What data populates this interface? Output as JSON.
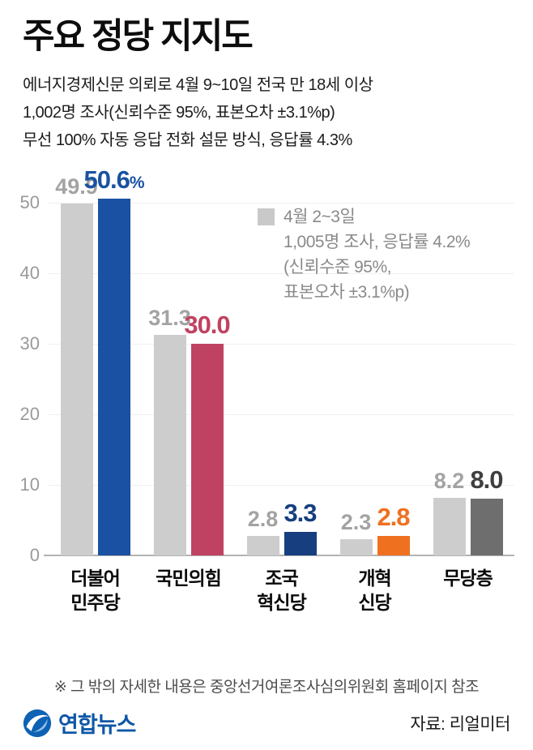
{
  "title": "주요 정당 지지도",
  "subtitle_lines": [
    "에너지경제신문 의뢰로 4월 9~10일 전국 만 18세 이상",
    "1,002명 조사(신뢰수준 95%, 표본오차 ±3.1%p)",
    "무선 100% 자동 응답 전화 설문 방식, 응답률 4.3%"
  ],
  "legend": {
    "swatch_color": "#c9c9c9",
    "lines": [
      "4월 2~3일",
      "1,005명 조사, 응답률 4.2%",
      "(신뢰수준 95%,",
      " 표본오차 ±3.1%p)"
    ]
  },
  "chart_data": {
    "type": "bar",
    "title": "주요 정당 지지도",
    "categories": [
      "더불어\n민주당",
      "국민의힘",
      "조국\n혁신당",
      "개혁\n신당",
      "무당층"
    ],
    "series": [
      {
        "name": "4월 2~3일 조사",
        "values": [
          49.9,
          31.3,
          2.8,
          2.3,
          8.2
        ],
        "color": "#cdcdcd",
        "label_color": "#a3a3a3"
      },
      {
        "name": "4월 9~10일 조사",
        "values": [
          50.6,
          30.0,
          3.3,
          2.8,
          8.0
        ],
        "colors": [
          "#1a51a2",
          "#c04262",
          "#173e7e",
          "#ef7120",
          "#6e6e6e"
        ],
        "label_colors": [
          "#1a51a2",
          "#c04262",
          "#173e7e",
          "#ef7120",
          "#3f3f3f"
        ]
      }
    ],
    "value_labels_prev": [
      "49.9",
      "31.3",
      "2.8",
      "2.3",
      "8.2"
    ],
    "value_labels_curr": [
      "50.6",
      "30.0",
      "3.3",
      "2.8",
      "8.0"
    ],
    "curr_label_suffix": [
      "%",
      "",
      "",
      "",
      ""
    ],
    "ylim": [
      0,
      50
    ],
    "yticks": [
      0,
      10,
      20,
      30,
      40,
      50
    ],
    "grid": true,
    "legend_position": "top-right"
  },
  "footnote": "※ 그 밖의 자세한 내용은 중앙선거여론조사심의위원회 홈페이지 참조",
  "footer": {
    "logo_text": "연합뉴스",
    "source": "자료: 리얼미터"
  }
}
